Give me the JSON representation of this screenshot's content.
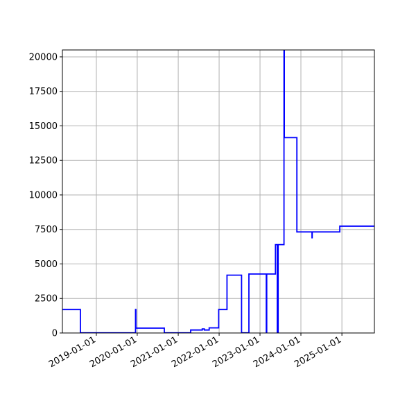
{
  "chart_data": {
    "type": "line",
    "drawstyle": "steps-post",
    "title": "",
    "xlabel": "",
    "ylabel": "",
    "xlim": [
      "2018-03-04",
      "2025-10-18"
    ],
    "ylim": [
      0,
      20500
    ],
    "grid": true,
    "line_color": "#0000ff",
    "x_ticks": [
      "2019-01-01",
      "2020-01-01",
      "2021-01-01",
      "2022-01-01",
      "2023-01-01",
      "2024-01-01",
      "2025-01-01"
    ],
    "y_ticks": [
      "0",
      "2500",
      "5000",
      "7500",
      "10000",
      "12500",
      "15000",
      "17500",
      "20000"
    ],
    "series": [
      {
        "points": [
          [
            "2018-03-04",
            1700
          ],
          [
            "2018-08-12",
            10
          ],
          [
            "2019-12-17",
            1700
          ],
          [
            "2019-12-20",
            350
          ],
          [
            "2020-08-30",
            10
          ],
          [
            "2021-04-22",
            215
          ],
          [
            "2021-08-03",
            290
          ],
          [
            "2021-08-22",
            215
          ],
          [
            "2021-10-04",
            370
          ],
          [
            "2021-12-28",
            1700
          ],
          [
            "2022-03-12",
            4190
          ],
          [
            "2022-07-20",
            10
          ],
          [
            "2022-09-24",
            4270
          ],
          [
            "2023-02-26",
            0
          ],
          [
            "2023-03-02",
            4270
          ],
          [
            "2023-05-19",
            6400
          ],
          [
            "2023-06-04",
            0
          ],
          [
            "2023-06-12",
            6400
          ],
          [
            "2023-08-03",
            22000
          ],
          [
            "2023-08-06",
            14150
          ],
          [
            "2023-11-26",
            7320
          ],
          [
            "2024-04-09",
            6900
          ],
          [
            "2024-04-11",
            7320
          ],
          [
            "2024-12-13",
            7740
          ],
          [
            "2025-10-18",
            7740
          ]
        ]
      }
    ]
  }
}
